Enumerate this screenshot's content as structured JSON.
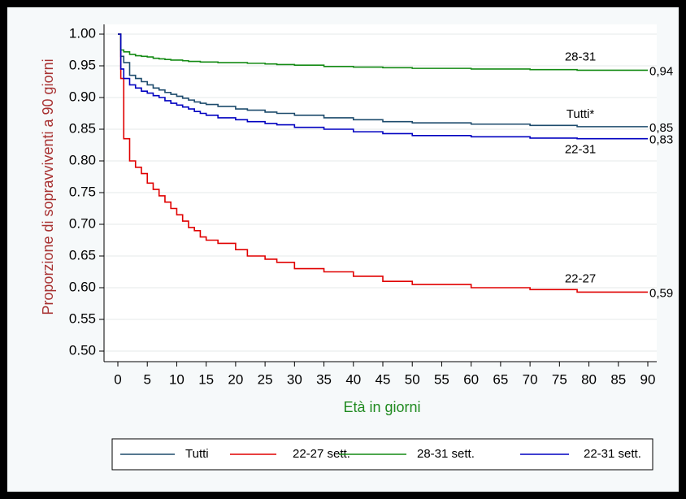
{
  "chart_data": {
    "type": "line",
    "step": true,
    "grid": true,
    "ylabel": "Proporzione di sopravviventi a 90 giorni",
    "xlabel": "Età in giorni",
    "x": [
      0,
      0.5,
      1,
      2,
      3,
      4,
      5,
      6,
      7,
      8,
      9,
      10,
      11,
      12,
      13,
      14,
      15,
      17,
      20,
      22,
      25,
      27,
      30,
      35,
      40,
      45,
      50,
      60,
      70,
      78,
      90
    ],
    "xlim": [
      0,
      90
    ],
    "xticks": [
      0,
      5,
      10,
      15,
      20,
      25,
      30,
      35,
      40,
      45,
      50,
      55,
      60,
      65,
      70,
      75,
      80,
      85,
      90
    ],
    "ylim": [
      0.5,
      1.0
    ],
    "yticks": [
      {
        "value": 0.5,
        "label": "0.50"
      },
      {
        "value": 0.55,
        "label": "0.55"
      },
      {
        "value": 0.6,
        "label": "0.60"
      },
      {
        "value": 0.65,
        "label": "0.65"
      },
      {
        "value": 0.7,
        "label": "0.70"
      },
      {
        "value": 0.75,
        "label": "0.75"
      },
      {
        "value": 0.8,
        "label": "0.80"
      },
      {
        "value": 0.85,
        "label": "0.85"
      },
      {
        "value": 0.9,
        "label": "0.90"
      },
      {
        "value": 0.95,
        "label": "0.95"
      },
      {
        "value": 1.0,
        "label": "1.00"
      }
    ],
    "series": [
      {
        "name": "Tutti",
        "color": "#1d4b6c",
        "curve_label": "Tutti*",
        "end_label": "0,85",
        "values": [
          1.0,
          0.965,
          0.955,
          0.935,
          0.93,
          0.925,
          0.92,
          0.915,
          0.912,
          0.908,
          0.905,
          0.902,
          0.899,
          0.896,
          0.893,
          0.891,
          0.889,
          0.886,
          0.882,
          0.88,
          0.877,
          0.875,
          0.872,
          0.868,
          0.865,
          0.862,
          0.86,
          0.858,
          0.856,
          0.854,
          0.854
        ]
      },
      {
        "name": "22-27 sett.",
        "color": "#e00000",
        "curve_label": "22-27",
        "end_label": "0,59",
        "values": [
          1.0,
          0.93,
          0.835,
          0.8,
          0.79,
          0.78,
          0.765,
          0.755,
          0.745,
          0.735,
          0.725,
          0.715,
          0.705,
          0.695,
          0.69,
          0.68,
          0.675,
          0.67,
          0.66,
          0.65,
          0.645,
          0.64,
          0.63,
          0.625,
          0.618,
          0.61,
          0.605,
          0.6,
          0.597,
          0.593,
          0.593
        ]
      },
      {
        "name": "28-31 sett.",
        "color": "#138a13",
        "curve_label": "28-31",
        "end_label": "0,94",
        "values": [
          1.0,
          0.975,
          0.972,
          0.968,
          0.966,
          0.965,
          0.964,
          0.962,
          0.961,
          0.96,
          0.959,
          0.959,
          0.958,
          0.957,
          0.957,
          0.956,
          0.956,
          0.955,
          0.955,
          0.954,
          0.953,
          0.952,
          0.951,
          0.949,
          0.948,
          0.947,
          0.946,
          0.945,
          0.944,
          0.943,
          0.943
        ]
      },
      {
        "name": "22-31 sett.",
        "color": "#0000c0",
        "curve_label": "22-31",
        "end_label": "0,83",
        "values": [
          1.0,
          0.945,
          0.93,
          0.92,
          0.915,
          0.91,
          0.907,
          0.903,
          0.9,
          0.895,
          0.891,
          0.888,
          0.885,
          0.882,
          0.878,
          0.875,
          0.872,
          0.868,
          0.865,
          0.862,
          0.859,
          0.857,
          0.853,
          0.85,
          0.846,
          0.843,
          0.84,
          0.838,
          0.836,
          0.835,
          0.835
        ]
      }
    ]
  }
}
